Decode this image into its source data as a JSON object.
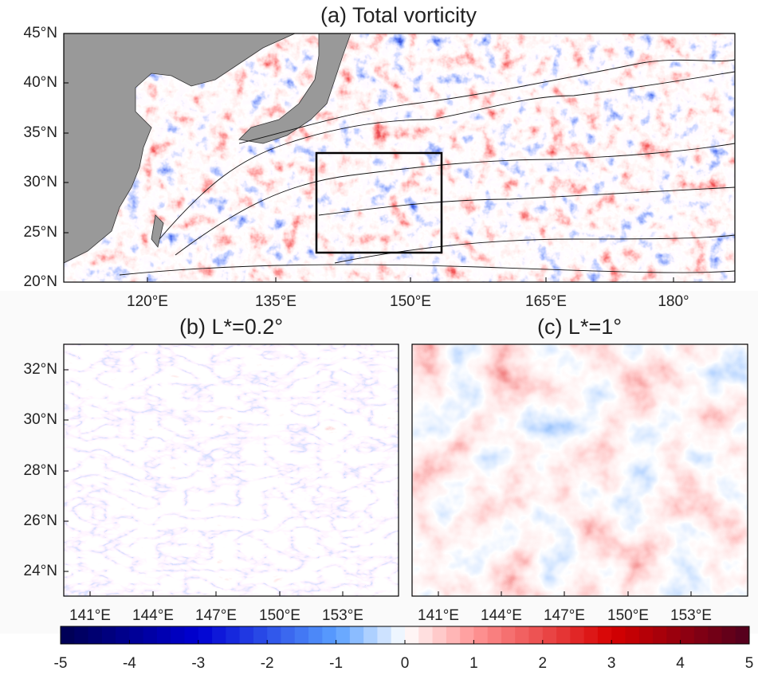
{
  "panels": [
    {
      "title": "(a) Total vorticity",
      "xticks": [
        "120°E",
        "135°E",
        "150°E",
        "165°E",
        "180°"
      ],
      "yticks": [
        "45°N",
        "40°N",
        "35°N",
        "30°N",
        "25°N",
        "20°N"
      ]
    },
    {
      "title": "(b) L*=0.2°",
      "xticks": [
        "141°E",
        "144°E",
        "147°E",
        "150°E",
        "153°E"
      ],
      "yticks": [
        "32°N",
        "30°N",
        "28°N",
        "26°N",
        "24°N"
      ]
    },
    {
      "title": "(c) L*=1°",
      "xticks": [
        "141°E",
        "144°E",
        "147°E",
        "150°E",
        "153°E"
      ]
    }
  ],
  "colorbar": {
    "ticks": [
      -5,
      -4,
      -3,
      -2,
      -1,
      0,
      1,
      2,
      3,
      4,
      5
    ]
  }
}
